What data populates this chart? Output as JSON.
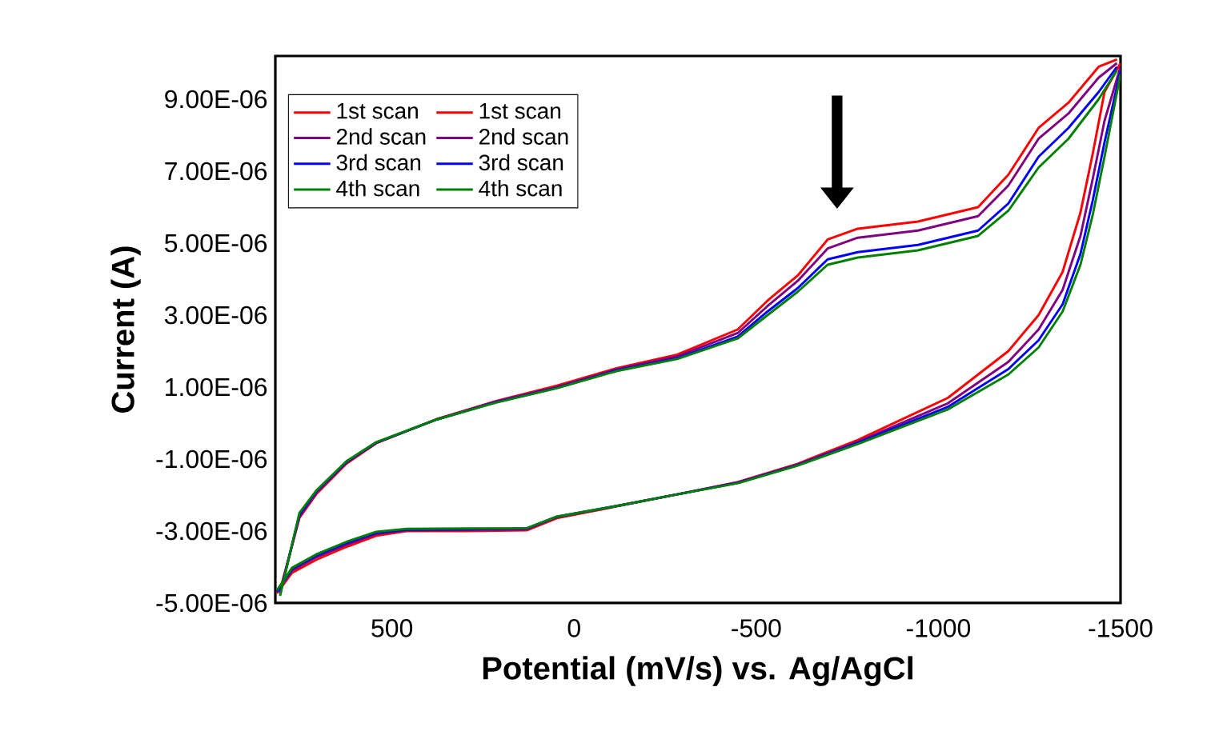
{
  "chart_data": {
    "type": "line",
    "xlabel": "Potential (mV/s) vs. Ag/AgCl",
    "ylabel": "Current (A)",
    "xlim": [
      820,
      -1500
    ],
    "xticks": [
      500,
      0,
      -500,
      -1000,
      -1500
    ],
    "ylim": [
      -5e-06,
      1.02e-05
    ],
    "yticks": [
      {
        "value": -5e-06,
        "label": "-5.00E-06"
      },
      {
        "value": -3e-06,
        "label": "-3.00E-06"
      },
      {
        "value": -1e-06,
        "label": "-1.00E-06"
      },
      {
        "value": 1e-06,
        "label": "1.00E-06"
      },
      {
        "value": 3e-06,
        "label": "3.00E-06"
      },
      {
        "value": 5e-06,
        "label": "5.00E-06"
      },
      {
        "value": 7e-06,
        "label": "7.00E-06"
      },
      {
        "value": 9e-06,
        "label": "9.00E-06"
      }
    ],
    "legend": "top left",
    "grid": false,
    "marker": "none",
    "series": [
      {
        "name": "1st scan",
        "color": "#ff0000",
        "x": [
          807,
          754,
          708,
          625,
          543,
          377,
          214,
          47,
          -119,
          -283,
          -449,
          -531,
          -614,
          -696,
          -779,
          -944,
          -1109,
          -1192,
          -1275,
          -1357,
          -1440,
          -1490
        ],
        "values": [
          -4.64e-06,
          -2.64e-06,
          -1.98e-06,
          -1.13e-06,
          -5.6e-07,
          1.1e-07,
          6.1e-07,
          1.04e-06,
          1.53e-06,
          1.9e-06,
          2.6e-06,
          3.4e-06,
          4.1e-06,
          5.1e-06,
          5.4e-06,
          5.6e-06,
          6e-06,
          6.9e-06,
          8.2e-06,
          8.9e-06,
          9.9e-06,
          1.01e-05
        ]
      },
      {
        "name": "1st scan",
        "color": "#ff0000",
        "x": [
          -1500,
          -1456,
          -1424,
          -1390,
          -1341,
          -1275,
          -1192,
          -1026,
          -779,
          -614,
          -450,
          -283,
          -119,
          47,
          130,
          294,
          460,
          543,
          625,
          708,
          774,
          816
        ],
        "values": [
          1e-05,
          9.2e-06,
          7.5e-06,
          5.85e-06,
          4.2e-06,
          3e-06,
          2e-06,
          7e-07,
          -4.7e-07,
          -1.13e-06,
          -1.64e-06,
          -1.98e-06,
          -2.31e-06,
          -2.64e-06,
          -2.98e-06,
          -3e-06,
          -3e-06,
          -3.13e-06,
          -3.44e-06,
          -3.8e-06,
          -4.16e-06,
          -4.73e-06
        ]
      },
      {
        "name": "2nd scan",
        "color": "#800080",
        "x": [
          807,
          754,
          708,
          625,
          543,
          377,
          214,
          47,
          -119,
          -283,
          -449,
          -531,
          -614,
          -696,
          -779,
          -944,
          -1109,
          -1192,
          -1275,
          -1357,
          -1440,
          -1490
        ],
        "values": [
          -4.7e-06,
          -2.6e-06,
          -1.95e-06,
          -1.1e-06,
          -5.5e-07,
          1e-07,
          6e-07,
          1e-06,
          1.5e-06,
          1.85e-06,
          2.5e-06,
          3.25e-06,
          3.95e-06,
          4.85e-06,
          5.15e-06,
          5.35e-06,
          5.75e-06,
          6.6e-06,
          7.9e-06,
          8.6e-06,
          9.6e-06,
          1e-05
        ]
      },
      {
        "name": "2nd scan",
        "color": "#800080",
        "x": [
          -1500,
          -1456,
          -1424,
          -1390,
          -1341,
          -1275,
          -1192,
          -1026,
          -779,
          -614,
          -450,
          -283,
          -119,
          47,
          130,
          294,
          460,
          543,
          625,
          708,
          774,
          816
        ],
        "values": [
          9.9e-06,
          8.4e-06,
          6.8e-06,
          5.2e-06,
          3.7e-06,
          2.6e-06,
          1.7e-06,
          5.5e-07,
          -5.2e-07,
          -1.15e-06,
          -1.65e-06,
          -1.98e-06,
          -2.3e-06,
          -2.62e-06,
          -2.95e-06,
          -2.97e-06,
          -2.98e-06,
          -3.08e-06,
          -3.38e-06,
          -3.73e-06,
          -4.1e-06,
          -4.7e-06
        ]
      },
      {
        "name": "3rd scan",
        "color": "#0000ff",
        "x": [
          807,
          754,
          708,
          625,
          543,
          377,
          214,
          47,
          -119,
          -283,
          -449,
          -531,
          -614,
          -696,
          -779,
          -944,
          -1109,
          -1192,
          -1275,
          -1357,
          -1440,
          -1490
        ],
        "values": [
          -4.75e-06,
          -2.55e-06,
          -1.9e-06,
          -1.08e-06,
          -5.4e-07,
          1e-07,
          5.8e-07,
          9.8e-07,
          1.47e-06,
          1.8e-06,
          2.4e-06,
          3.1e-06,
          3.75e-06,
          4.55e-06,
          4.75e-06,
          4.95e-06,
          5.35e-06,
          6.1e-06,
          7.4e-06,
          8.2e-06,
          9.2e-06,
          9.9e-06
        ]
      },
      {
        "name": "3rd scan",
        "color": "#0000ff",
        "x": [
          -1500,
          -1456,
          -1424,
          -1390,
          -1341,
          -1275,
          -1192,
          -1026,
          -779,
          -614,
          -450,
          -283,
          -119,
          47,
          130,
          294,
          460,
          543,
          625,
          708,
          774,
          816
        ],
        "values": [
          9.8e-06,
          7.8e-06,
          6.2e-06,
          4.7e-06,
          3.3e-06,
          2.3e-06,
          1.5e-06,
          4.5e-07,
          -5.5e-07,
          -1.17e-06,
          -1.66e-06,
          -1.98e-06,
          -2.3e-06,
          -2.6e-06,
          -2.93e-06,
          -2.95e-06,
          -2.96e-06,
          -3.05e-06,
          -3.33e-06,
          -3.68e-06,
          -4.05e-06,
          -4.68e-06
        ]
      },
      {
        "name": "4th scan",
        "color": "#008000",
        "x": [
          807,
          754,
          708,
          625,
          543,
          377,
          214,
          47,
          -119,
          -283,
          -449,
          -531,
          -614,
          -696,
          -779,
          -944,
          -1109,
          -1192,
          -1275,
          -1357,
          -1440,
          -1490
        ],
        "values": [
          -4.8e-06,
          -2.5e-06,
          -1.88e-06,
          -1.06e-06,
          -5.3e-07,
          1e-07,
          5.7e-07,
          9.7e-07,
          1.45e-06,
          1.78e-06,
          2.35e-06,
          3e-06,
          3.65e-06,
          4.4e-06,
          4.6e-06,
          4.8e-06,
          5.2e-06,
          5.9e-06,
          7.1e-06,
          7.9e-06,
          9e-06,
          9.8e-06
        ]
      },
      {
        "name": "4th scan",
        "color": "#008000",
        "x": [
          -1500,
          -1456,
          -1424,
          -1390,
          -1341,
          -1275,
          -1192,
          -1026,
          -779,
          -614,
          -450,
          -283,
          -119,
          47,
          130,
          294,
          460,
          543,
          625,
          708,
          774,
          816
        ],
        "values": [
          9.7e-06,
          7.4e-06,
          5.8e-06,
          4.4e-06,
          3.1e-06,
          2.1e-06,
          1.35e-06,
          3.8e-07,
          -5.8e-07,
          -1.18e-06,
          -1.67e-06,
          -1.98e-06,
          -2.3e-06,
          -2.6e-06,
          -2.92e-06,
          -2.93e-06,
          -2.94e-06,
          -3.02e-06,
          -3.3e-06,
          -3.65e-06,
          -4.02e-06,
          -4.65e-06
        ]
      }
    ]
  }
}
